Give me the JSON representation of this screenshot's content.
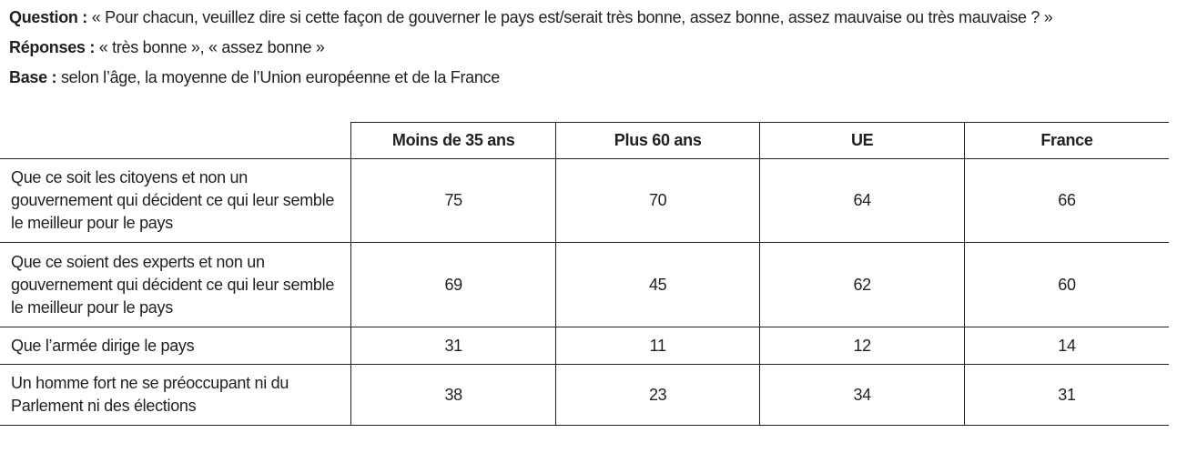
{
  "intro": {
    "question_label": "Question :",
    "question_text": "« Pour chacun, veuillez dire si cette façon de gouverner le pays est/serait très bonne, assez bonne, assez mauvaise ou très mauvaise ? »",
    "responses_label": "Réponses :",
    "responses_text": "« très bonne », « assez bonne »",
    "base_label": "Base :",
    "base_text": "selon l’âge, la moyenne de l’Union européenne et de la France"
  },
  "chart_data": {
    "type": "table",
    "columns": [
      "Moins de 35 ans",
      "Plus 60 ans",
      "UE",
      "France"
    ],
    "rows": [
      {
        "label": "Que ce soit les citoyens et non un gouvernement qui décident ce qui leur semble le meilleur pour le pays",
        "values": [
          75,
          70,
          64,
          66
        ]
      },
      {
        "label": "Que ce soient des experts et non un gouvernement qui décident ce qui leur semble le meilleur pour le pays",
        "values": [
          69,
          45,
          62,
          60
        ]
      },
      {
        "label": "Que l’armée dirige le pays",
        "values": [
          31,
          11,
          12,
          14
        ]
      },
      {
        "label": "Un homme fort ne se préoccupant ni du Parlement ni des élections",
        "values": [
          38,
          23,
          34,
          31
        ]
      }
    ],
    "colors": {
      "text": "#231f20",
      "border": "#231f20",
      "background": "#ffffff"
    }
  }
}
